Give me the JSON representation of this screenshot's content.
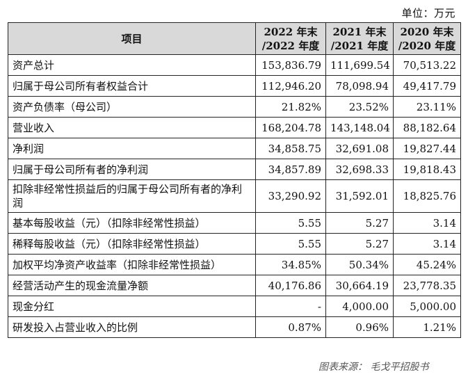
{
  "unit_label": "单位：万元",
  "header": {
    "item": "项目",
    "years": [
      {
        "line1": "2022 年末",
        "line2": "/2022 年度"
      },
      {
        "line1": "2021 年末",
        "line2": "/2021 年度"
      },
      {
        "line1": "2020 年末",
        "line2": "/2020 年度"
      }
    ]
  },
  "rows": [
    {
      "label": "资产总计",
      "values": [
        "153,836.79",
        "111,699.54",
        "70,513.22"
      ]
    },
    {
      "label": "归属于母公司所有者权益合计",
      "values": [
        "112,946.20",
        "78,098.94",
        "49,417.79"
      ]
    },
    {
      "label": "资产负债率（母公司）",
      "values": [
        "21.82%",
        "23.52%",
        "23.11%"
      ]
    },
    {
      "label": "营业收入",
      "values": [
        "168,204.78",
        "143,148.04",
        "88,182.64"
      ]
    },
    {
      "label": "净利润",
      "values": [
        "34,858.75",
        "32,691.08",
        "19,827.44"
      ]
    },
    {
      "label": "归属于母公司所有者的净利润",
      "values": [
        "34,857.89",
        "32,698.33",
        "19,818.43"
      ]
    },
    {
      "label": "扣除非经常性损益后的归属于母公司所有者的净利润",
      "values": [
        "33,290.92",
        "31,592.01",
        "18,825.76"
      ],
      "tall": true
    },
    {
      "label": "基本每股收益（元）（扣除非经常性损益）",
      "values": [
        "5.55",
        "5.27",
        "3.14"
      ]
    },
    {
      "label": "稀释每股收益（元）（扣除非经常性损益）",
      "values": [
        "5.55",
        "5.27",
        "3.14"
      ]
    },
    {
      "label": "加权平均净资产收益率（扣除非经常性损益）",
      "values": [
        "34.85%",
        "50.34%",
        "45.24%"
      ]
    },
    {
      "label": "经营活动产生的现金流量净额",
      "values": [
        "40,176.86",
        "30,664.19",
        "23,778.35"
      ]
    },
    {
      "label": "现金分红",
      "values": [
        "-",
        "4,000.00",
        "5,000.00"
      ]
    },
    {
      "label": "研发投入占营业收入的比例",
      "values": [
        "0.87%",
        "0.96%",
        "1.21%"
      ]
    }
  ],
  "source": "图表来源： 毛戈平招股书"
}
